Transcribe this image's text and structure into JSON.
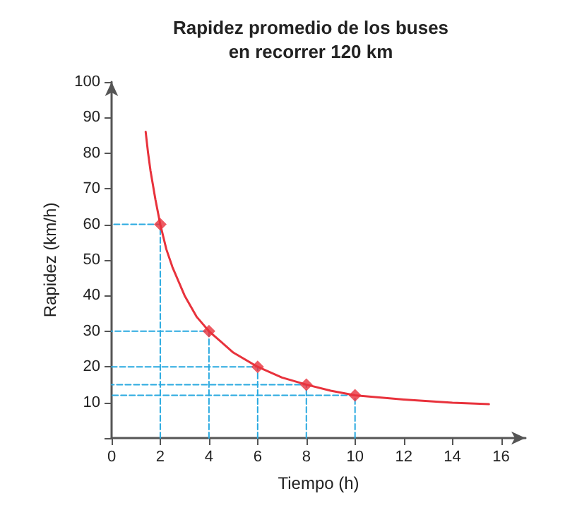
{
  "chart_data": {
    "type": "line",
    "title": "Rapidez promedio de los buses\nen recorrer 120 km",
    "xlabel": "Tiempo (h)",
    "ylabel": "Rapidez (km/h)",
    "xlim": [
      0,
      17
    ],
    "ylim": [
      0,
      100
    ],
    "xticks": [
      0,
      2,
      4,
      6,
      8,
      10,
      12,
      14,
      16
    ],
    "yticks": [
      {
        "value": 0,
        "label": null
      },
      10,
      20,
      30,
      40,
      50,
      60,
      70,
      80,
      90,
      100
    ],
    "grid": false,
    "series": [
      {
        "color": "#e8323c",
        "marker": "none",
        "x": [
          1.4,
          1.5,
          1.6,
          1.8,
          2,
          2.25,
          2.5,
          3,
          3.5,
          4,
          4.5,
          5,
          6,
          7,
          8,
          9,
          10,
          12,
          14,
          15.5
        ],
        "values": [
          86,
          80,
          75,
          67,
          60,
          53,
          48,
          40,
          34,
          30,
          27,
          24,
          20,
          17,
          15,
          13.3,
          12,
          10.8,
          9.9,
          9.5
        ]
      },
      {
        "color": "#29a9e0",
        "marker": "none",
        "line_style": "dashed",
        "x": [
          2,
          2,
          0
        ],
        "values": [
          0,
          60,
          60
        ]
      },
      {
        "color": "#29a9e0",
        "marker": "none",
        "line_style": "dashed",
        "x": [
          4,
          4,
          0
        ],
        "values": [
          0,
          30,
          30
        ]
      },
      {
        "color": "#29a9e0",
        "marker": "none",
        "line_style": "dashed",
        "x": [
          6,
          6,
          0
        ],
        "values": [
          0,
          20,
          20
        ]
      },
      {
        "color": "#29a9e0",
        "marker": "none",
        "line_style": "dashed",
        "x": [
          8,
          8,
          0
        ],
        "values": [
          0,
          15,
          15
        ]
      },
      {
        "color": "#29a9e0",
        "marker": "none",
        "line_style": "dashed",
        "x": [
          10,
          10,
          0
        ],
        "values": [
          0,
          12,
          12
        ]
      },
      {
        "type": "scatter",
        "color": "#e8323c",
        "marker": "diamond",
        "x": [
          2,
          4,
          6,
          8,
          10
        ],
        "values": [
          60,
          30,
          20,
          15,
          12
        ]
      }
    ]
  }
}
